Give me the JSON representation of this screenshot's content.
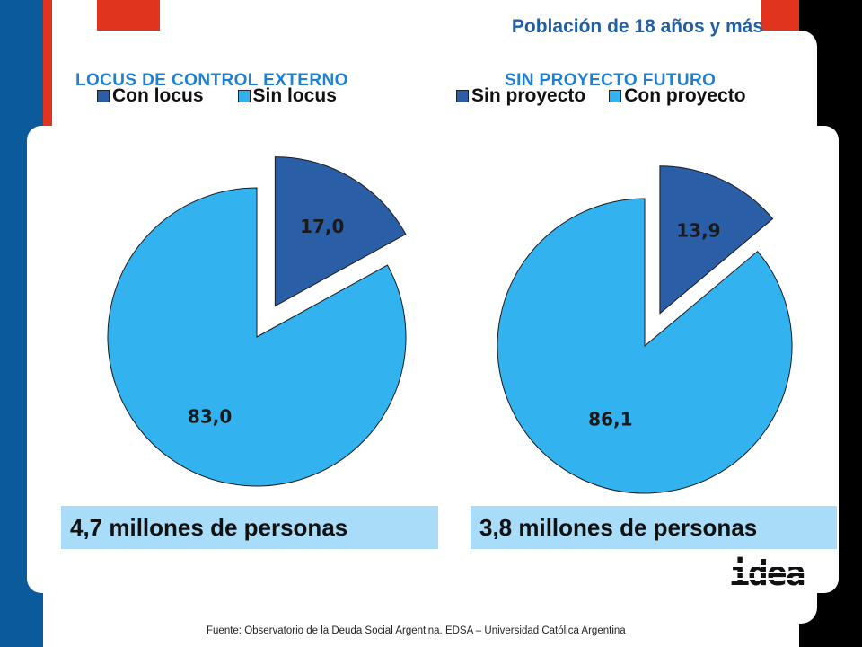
{
  "header": {
    "subtitle": "Población de 18 años y más"
  },
  "colors": {
    "dark_blue": "#2a5fa8",
    "light_blue": "#33b2f0",
    "red": "#e0341c",
    "navy": "#0a5a9c",
    "black": "#000000"
  },
  "chart_data": [
    {
      "type": "pie",
      "title": "LOCUS DE CONTROL EXTERNO",
      "legend": [
        "Con locus",
        "Sin locus"
      ],
      "legend_placement": "top",
      "slices": [
        {
          "name": "Con locus",
          "value": 17.0,
          "label": "17,0",
          "color": "#2a5fa8",
          "exploded": true
        },
        {
          "name": "Sin locus",
          "value": 83.0,
          "label": "83,0",
          "color": "#33b2f0",
          "exploded": false
        }
      ],
      "caption": "4,7 millones de personas"
    },
    {
      "type": "pie",
      "title": "SIN PROYECTO FUTURO",
      "legend": [
        "Sin proyecto",
        "Con proyecto"
      ],
      "legend_placement": "top",
      "slices": [
        {
          "name": "Sin proyecto",
          "value": 13.9,
          "label": "13,9",
          "color": "#2a5fa8",
          "exploded": true
        },
        {
          "name": "Con proyecto",
          "value": 86.1,
          "label": "86,1",
          "color": "#33b2f0",
          "exploded": false
        }
      ],
      "caption": "3,8 millones de personas"
    }
  ],
  "footer": {
    "source": "Fuente:   Observatorio de  la Deuda Social Argentina. EDSA  – Universidad Católica Argentina",
    "logo_text": "idea"
  }
}
